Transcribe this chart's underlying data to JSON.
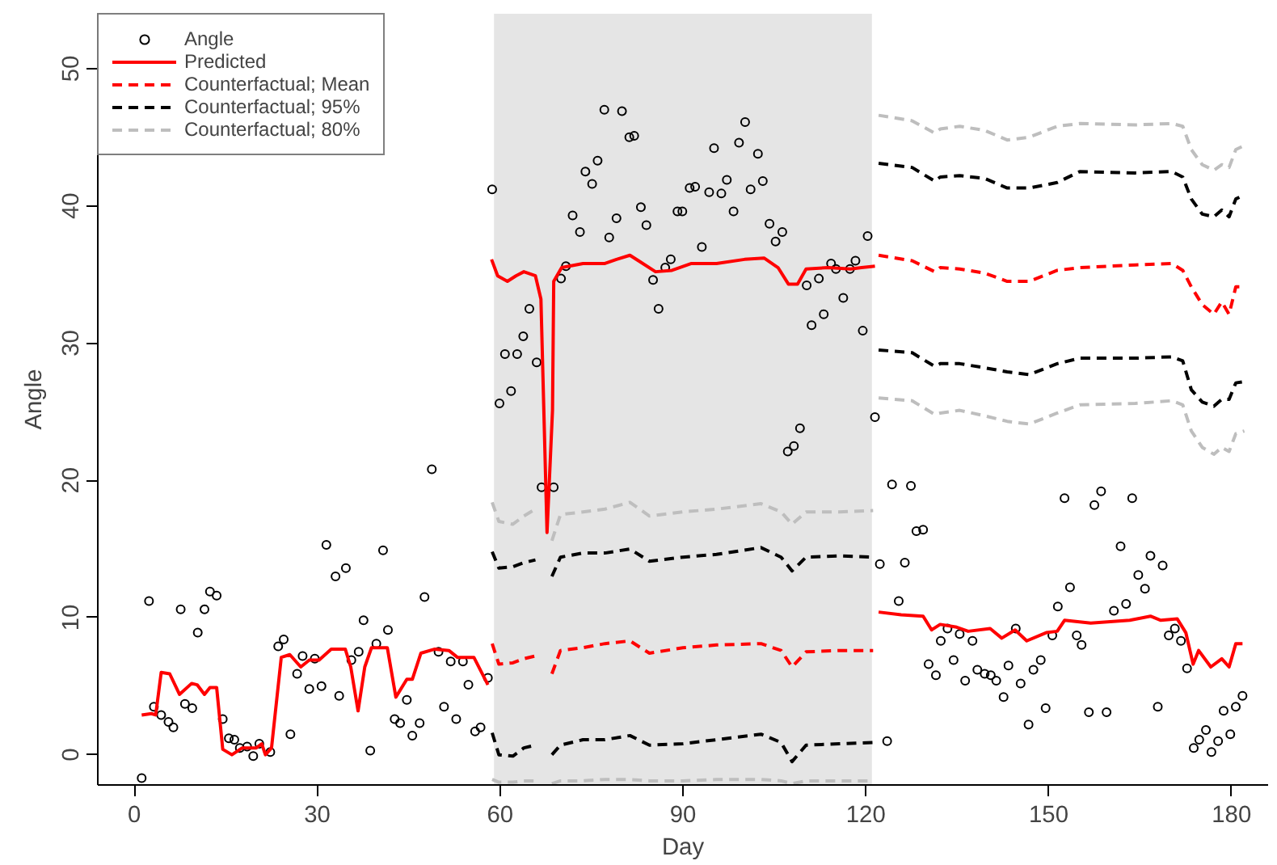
{
  "chart_data": {
    "type": "line",
    "xlabel": "Day",
    "ylabel": "Angle",
    "xlim": [
      -6,
      186
    ],
    "ylim": [
      -2.2,
      54
    ],
    "xticks": [
      0,
      30,
      60,
      90,
      120,
      150,
      180
    ],
    "yticks": [
      0,
      10,
      20,
      30,
      40,
      50
    ],
    "legend": "top left",
    "bands": [
      {
        "axis": "x",
        "from": 59,
        "to": 121,
        "color": "#e5e5e5"
      }
    ],
    "series": [
      {
        "type": "scatter",
        "name": "Angle",
        "color": "#000000",
        "marker": "circle",
        "x": [
          1.2,
          2.4,
          3.2,
          4.4,
          5.6,
          6.4,
          7.6,
          8.3,
          9.5,
          10.4,
          11.5,
          12.4,
          13.5,
          14.5,
          15.5,
          16.4,
          17.3,
          18.5,
          19.5,
          20.5,
          22.3,
          23.6,
          24.5,
          25.6,
          26.7,
          27.6,
          28.7,
          29.6,
          30.7,
          31.5,
          33.0,
          33.6,
          34.7,
          35.6,
          36.8,
          37.6,
          38.7,
          39.7,
          40.8,
          41.6,
          42.7,
          43.6,
          44.7,
          45.6,
          46.8,
          47.6,
          48.8,
          49.9,
          50.8,
          51.9,
          52.8,
          53.9,
          54.8,
          55.9,
          56.8,
          58.0,
          58.7,
          59.9,
          60.8,
          61.8,
          62.8,
          63.8,
          64.8,
          66.0,
          66.8,
          68.8,
          70.0,
          70.8,
          71.9,
          73.1,
          74.0,
          75.1,
          76.0,
          77.1,
          77.9,
          79.1,
          80.0,
          81.2,
          82.0,
          83.1,
          84.0,
          85.1,
          86.0,
          87.1,
          88.0,
          89.1,
          89.9,
          91.1,
          92.0,
          93.1,
          94.3,
          95.1,
          96.3,
          97.2,
          98.3,
          99.2,
          100.2,
          101.1,
          102.3,
          103.1,
          104.2,
          105.2,
          106.3,
          107.2,
          108.2,
          109.2,
          110.3,
          111.1,
          112.3,
          113.1,
          114.3,
          115.1,
          116.3,
          117.4,
          118.3,
          119.5,
          120.3,
          121.5,
          122.3,
          123.5,
          124.3,
          125.4,
          126.4,
          127.4,
          128.3,
          129.4,
          130.3,
          131.5,
          132.3,
          133.4,
          134.4,
          135.4,
          136.3,
          137.5,
          138.3,
          139.5,
          140.5,
          141.4,
          142.6,
          143.4,
          144.6,
          145.4,
          146.7,
          147.5,
          148.7,
          149.5,
          150.6,
          151.5,
          152.6,
          153.5,
          154.6,
          155.4,
          156.6,
          157.5,
          158.6,
          159.5,
          160.7,
          161.8,
          162.7,
          163.7,
          164.7,
          165.8,
          166.7,
          167.9,
          168.7,
          169.7,
          170.7,
          171.7,
          172.7,
          173.8,
          174.7,
          175.8,
          176.7,
          177.8,
          178.7,
          179.8,
          180.7,
          181.8
        ],
        "values": [
          -1.7,
          11.2,
          3.5,
          2.9,
          2.4,
          2.0,
          10.6,
          3.7,
          3.4,
          8.9,
          10.6,
          11.9,
          11.6,
          2.6,
          1.2,
          1.1,
          0.5,
          0.6,
          -0.1,
          0.8,
          0.2,
          7.9,
          8.4,
          1.5,
          5.9,
          7.2,
          4.8,
          7.0,
          5.0,
          15.3,
          13.0,
          4.3,
          13.6,
          6.9,
          7.5,
          9.8,
          0.3,
          8.1,
          14.9,
          9.1,
          2.6,
          2.3,
          4.0,
          1.4,
          2.3,
          11.5,
          20.8,
          7.5,
          3.5,
          6.8,
          2.6,
          6.8,
          5.1,
          1.7,
          2.0,
          5.6,
          41.2,
          25.6,
          29.2,
          26.5,
          29.2,
          30.5,
          32.5,
          28.6,
          19.5,
          19.5,
          34.7,
          35.6,
          39.3,
          38.1,
          42.5,
          41.6,
          43.3,
          47.0,
          37.7,
          39.1,
          46.9,
          45.0,
          45.1,
          39.9,
          38.6,
          34.6,
          32.5,
          35.5,
          36.1,
          39.6,
          39.6,
          41.3,
          41.4,
          37.0,
          41.0,
          44.2,
          40.9,
          41.9,
          39.6,
          44.6,
          46.1,
          41.2,
          43.8,
          41.8,
          38.7,
          37.4,
          38.1,
          22.1,
          22.5,
          23.8,
          34.2,
          31.3,
          34.7,
          32.1,
          35.8,
          35.4,
          33.3,
          35.4,
          36.0,
          30.9,
          37.8,
          24.6,
          13.9,
          1.0,
          19.7,
          11.2,
          14.0,
          19.6,
          16.3,
          16.4,
          6.6,
          5.8,
          8.3,
          9.2,
          6.9,
          8.8,
          5.4,
          8.3,
          6.2,
          5.9,
          5.8,
          5.4,
          4.2,
          6.5,
          9.2,
          5.2,
          2.2,
          6.2,
          6.9,
          3.4,
          8.7,
          10.8,
          18.7,
          12.2,
          8.7,
          8.0,
          3.1,
          18.2,
          19.2,
          3.1,
          10.5,
          15.2,
          11.0,
          18.7,
          13.1,
          12.1,
          14.5,
          3.5,
          13.8,
          8.7,
          9.2,
          8.3,
          6.3,
          0.5,
          1.1,
          1.8,
          0.2,
          1.0,
          3.2,
          1.5,
          3.5,
          4.3
        ]
      },
      {
        "name": "Predicted",
        "color": "#ff0000",
        "line_style": "solid",
        "x": [
          1.2,
          2.8,
          3.5,
          4.4,
          5.8,
          7.4,
          9.4,
          10.3,
          11.5,
          12.4,
          13.5,
          14.5,
          16.0,
          17.7,
          20.0,
          20.9,
          21.5,
          22.5,
          24.1,
          25.5,
          27.3,
          28.7,
          30.3,
          32.3,
          34.6,
          35.5,
          36.7,
          37.8,
          38.9,
          41.5,
          42.9,
          44.7,
          45.6,
          47.0,
          49.3,
          51.6,
          53.0,
          55.7,
          58.0,
          58.3,
          58.6,
          59.6,
          61.2,
          62.6,
          63.9,
          65.8,
          66.7,
          67.7,
          68.6,
          68.8,
          70.1,
          73.6,
          77.2,
          79.1,
          81.3,
          82.7,
          85.5,
          88.2,
          91.4,
          95.5,
          100.1,
          103.3,
          105.6,
          107.3,
          108.8,
          110.2,
          113.8,
          117.5,
          119.3,
          121.5,
          121.8,
          122.1,
          125.8,
          129.4,
          130.8,
          132.2,
          134.9,
          136.8,
          140.4,
          142.3,
          144.5,
          146.4,
          149.6,
          151.4,
          152.6,
          156.9,
          163.3,
          166.7,
          168.4,
          171.1,
          172.5,
          173.7,
          174.6,
          176.6,
          178.4,
          179.6,
          180.7,
          181.8
        ],
        "values": [
          2.9,
          3.0,
          2.9,
          6.0,
          5.9,
          4.4,
          5.2,
          5.1,
          4.4,
          4.9,
          4.9,
          0.4,
          0.0,
          0.5,
          0.5,
          0.8,
          0.0,
          0.5,
          7.1,
          7.3,
          6.4,
          6.9,
          6.9,
          7.7,
          7.7,
          6.4,
          3.2,
          6.4,
          7.8,
          7.8,
          4.2,
          5.5,
          5.5,
          7.4,
          7.7,
          7.6,
          7.1,
          7.1,
          5.1,
          null,
          36.1,
          34.9,
          34.5,
          34.9,
          35.2,
          34.9,
          33.2,
          16.2,
          25.1,
          34.5,
          35.5,
          35.8,
          35.8,
          36.1,
          36.4,
          36.0,
          35.2,
          35.3,
          35.8,
          35.8,
          36.1,
          36.2,
          35.5,
          34.3,
          34.3,
          35.4,
          35.5,
          35.4,
          35.5,
          35.6,
          null,
          10.4,
          10.2,
          10.1,
          9.1,
          9.5,
          9.3,
          9.0,
          9.2,
          8.5,
          9.1,
          8.3,
          8.9,
          9.0,
          9.8,
          9.6,
          9.8,
          10.1,
          9.8,
          9.9,
          8.9,
          6.6,
          7.6,
          6.4,
          7.0,
          6.4,
          8.1,
          8.1
        ]
      },
      {
        "name": "Counterfactual; Mean",
        "color": "#ff0000",
        "line_style": "dashed",
        "x": [
          58.7,
          59.8,
          62.1,
          63.9,
          65.8,
          66.7,
          67.7,
          68.5,
          69.9,
          73.6,
          77.2,
          81.3,
          84.5,
          90,
          95.5,
          102.8,
          106.1,
          107.9,
          110.2,
          115.7,
          121.2,
          121.6,
          122.1,
          127.6,
          131.3,
          132.2,
          135.4,
          139.5,
          143.2,
          146.8,
          151.4,
          155.1,
          164.2,
          170.2,
          172,
          173.4,
          175.2,
          177.1,
          178.4,
          179.6,
          180.7,
          182.1
        ],
        "values": [
          8.1,
          6.6,
          6.7,
          7.0,
          7.2,
          null,
          null,
          5.9,
          7.6,
          7.8,
          8.1,
          8.3,
          7.4,
          7.8,
          8.0,
          8.1,
          7.6,
          6.4,
          7.5,
          7.6,
          7.6,
          null,
          36.4,
          36.0,
          35.2,
          35.5,
          35.4,
          35.1,
          34.5,
          34.5,
          35.3,
          35.5,
          35.7,
          35.8,
          35.3,
          34.1,
          32.8,
          32.1,
          33.0,
          32.1,
          34.1,
          34.1
        ]
      },
      {
        "name": "Counterfactual; 95%",
        "color": "#000000",
        "line_style": "dashed",
        "x": [
          58.7,
          59.8,
          62.1,
          63.9,
          65.8,
          66.7,
          67.7,
          68.5,
          69.9,
          73.6,
          77.2,
          81.3,
          84.5,
          90,
          95.5,
          102.8,
          106.1,
          107.9,
          110.2,
          115.7,
          121.2,
          121.6,
          122.1,
          127.6,
          131.3,
          132.2,
          135.4,
          139.5,
          143.2,
          146.8,
          151.4,
          155.1,
          164.2,
          170.2,
          172,
          173.4,
          175.2,
          177.1,
          178.4,
          179.6,
          180.7,
          182.1
        ],
        "values": [
          14.8,
          13.6,
          13.7,
          14.0,
          14.2,
          null,
          null,
          13.0,
          14.4,
          14.7,
          14.7,
          15.0,
          14.1,
          14.4,
          14.6,
          15.1,
          14.4,
          13.4,
          14.4,
          14.5,
          14.4,
          null,
          43.1,
          42.8,
          41.8,
          42.1,
          42.2,
          42.0,
          41.3,
          41.3,
          41.7,
          42.5,
          42.4,
          42.5,
          42.1,
          40.5,
          39.4,
          39.2,
          39.7,
          39.2,
          40.5,
          40.8
        ]
      },
      {
        "color": "#000000",
        "line_style": "dashed",
        "x": [
          58.7,
          59.8,
          62.1,
          63.9,
          65.8,
          66.7,
          67.7,
          68.5,
          69.9,
          73.6,
          77.2,
          81.3,
          84.5,
          90,
          95.5,
          102.8,
          106.1,
          107.9,
          110.2,
          115.7,
          121.2,
          121.6,
          122.1,
          127.6,
          131.3,
          132.2,
          135.4,
          139.5,
          143.2,
          146.8,
          151.4,
          155.1,
          164.2,
          170.2,
          172,
          173.4,
          175.2,
          177.1,
          178.4,
          179.6,
          180.7,
          182.1
        ],
        "values": [
          1.6,
          0.0,
          -0.1,
          0.5,
          0.7,
          null,
          null,
          0.0,
          0.7,
          1.1,
          1.1,
          1.4,
          0.7,
          0.8,
          1.1,
          1.5,
          0.9,
          -0.5,
          0.7,
          0.8,
          0.9,
          null,
          29.5,
          29.3,
          28.3,
          28.5,
          28.5,
          28.2,
          27.9,
          27.7,
          28.5,
          28.9,
          28.9,
          29.0,
          28.7,
          26.6,
          25.7,
          25.4,
          25.9,
          25.9,
          27.1,
          27.2
        ]
      },
      {
        "name": "Counterfactual; 80%",
        "color": "#bebebe",
        "line_style": "dashed",
        "x": [
          58.7,
          59.8,
          62.1,
          63.9,
          65.8,
          66.7,
          67.7,
          68.5,
          69.9,
          73.6,
          77.2,
          81.3,
          84.5,
          90,
          95.5,
          102.8,
          106.1,
          107.9,
          110.2,
          115.7,
          121.2,
          121.6,
          122.1,
          127.6,
          131.3,
          132.2,
          135.4,
          139.5,
          143.2,
          146.8,
          151.4,
          155.1,
          164.2,
          170.2,
          172,
          173.4,
          175.2,
          177.1,
          178.4,
          179.6,
          180.7,
          182.1
        ],
        "values": [
          18.4,
          17.0,
          16.8,
          17.4,
          17.9,
          null,
          null,
          15.6,
          17.5,
          17.7,
          17.9,
          18.4,
          17.4,
          17.7,
          17.9,
          18.3,
          17.7,
          16.8,
          17.7,
          17.7,
          17.8,
          null,
          46.6,
          46.2,
          45.3,
          45.6,
          45.8,
          45.5,
          44.8,
          45.0,
          45.8,
          46.0,
          45.9,
          46.0,
          45.8,
          44.1,
          43.0,
          42.6,
          43.0,
          42.8,
          44.1,
          44.4
        ]
      },
      {
        "color": "#bebebe",
        "line_style": "dashed",
        "x": [
          58.7,
          59.8,
          62.1,
          63.9,
          65.8,
          66.7,
          67.7,
          68.5,
          69.9,
          73.6,
          77.2,
          81.3,
          84.5,
          90,
          95.5,
          102.8,
          106.1,
          107.9,
          110.2,
          115.7,
          121.2,
          121.6,
          122.1,
          127.6,
          131.3,
          132.2,
          135.4,
          139.5,
          143.2,
          146.8,
          151.4,
          155.1,
          164.2,
          170.2,
          172,
          173.4,
          175.2,
          177.1,
          178.4,
          179.6,
          180.7,
          182.1
        ],
        "values": [
          -1.8,
          -2.0,
          -2.0,
          -1.9,
          -1.9,
          null,
          null,
          -2.1,
          -1.9,
          -1.9,
          -1.8,
          -1.8,
          -1.9,
          -1.9,
          -1.8,
          -1.8,
          -1.9,
          -2.1,
          -1.9,
          -1.9,
          -1.9,
          null,
          26.0,
          25.8,
          24.8,
          24.9,
          25.1,
          24.7,
          24.3,
          24.1,
          24.9,
          25.5,
          25.6,
          25.8,
          25.5,
          23.6,
          22.4,
          21.9,
          22.4,
          22.1,
          23.4,
          23.6
        ]
      }
    ]
  }
}
